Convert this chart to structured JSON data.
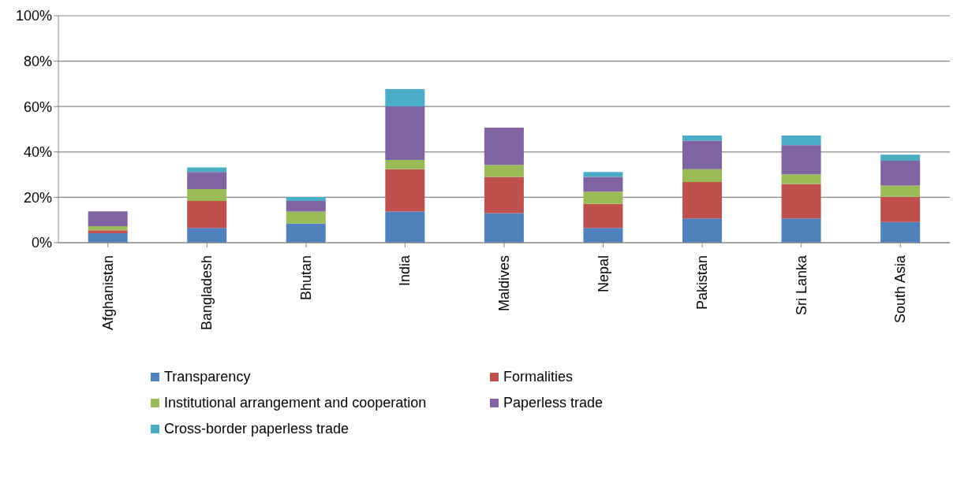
{
  "chart_data": {
    "type": "bar",
    "stacked": true,
    "categories": [
      "Afghanistan",
      "Bangladesh",
      "Bhutan",
      "India",
      "Maldives",
      "Nepal",
      "Pakistan",
      "Sri Lanka",
      "South Asia"
    ],
    "series": [
      {
        "name": "Transparency",
        "color": "#4f81bd",
        "values": [
          4.2,
          6.5,
          8.4,
          13.7,
          13.0,
          6.5,
          10.7,
          10.7,
          9.1
        ]
      },
      {
        "name": "Formalities",
        "color": "#c0504d",
        "values": [
          1.3,
          11.9,
          0,
          18.7,
          16.0,
          10.6,
          16.0,
          15.2,
          11.1
        ]
      },
      {
        "name": "Institutional arrangement and cooperation",
        "color": "#9bbb59",
        "values": [
          1.8,
          5.2,
          5.3,
          4.1,
          5.3,
          5.4,
          5.7,
          4.2,
          5.0
        ]
      },
      {
        "name": "Paperless trade",
        "color": "#8064a2",
        "values": [
          6.5,
          7.6,
          4.7,
          23.6,
          16.4,
          6.5,
          12.5,
          12.9,
          10.9
        ]
      },
      {
        "name": "Cross-border paperless trade",
        "color": "#4bacc6",
        "values": [
          0,
          2.0,
          1.7,
          7.6,
          0,
          2.2,
          2.3,
          4.2,
          2.7
        ]
      }
    ],
    "ylim": [
      0,
      100
    ],
    "yticks": [
      {
        "value": 0,
        "label": "0%"
      },
      {
        "value": 20,
        "label": "20%"
      },
      {
        "value": 40,
        "label": "40%"
      },
      {
        "value": 60,
        "label": "60%"
      },
      {
        "value": 80,
        "label": "80%"
      },
      {
        "value": 100,
        "label": "100%"
      }
    ],
    "grid": "y",
    "legend": "bottom"
  }
}
